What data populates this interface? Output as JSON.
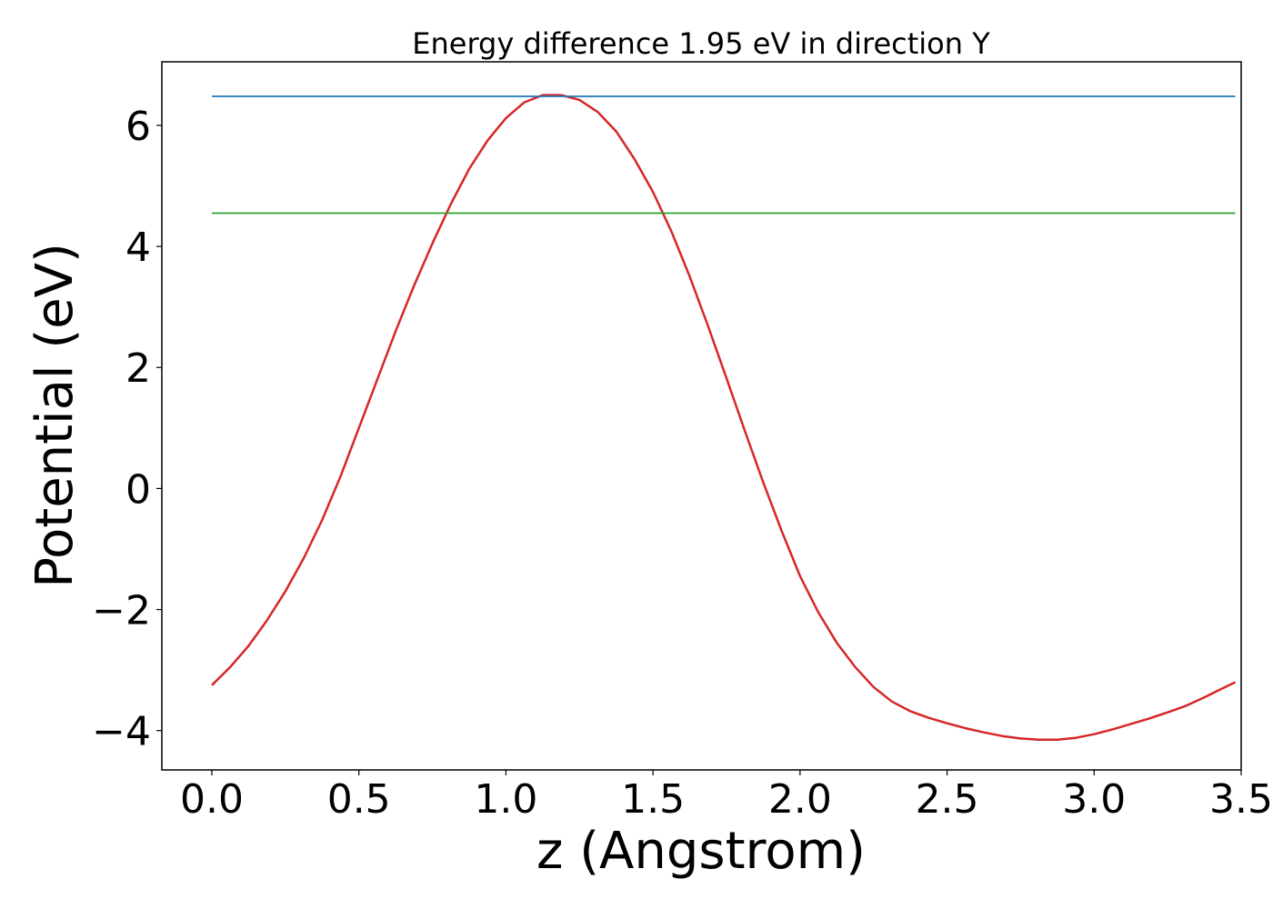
{
  "chart_data": {
    "type": "line",
    "title": "Energy difference 1.95 eV in direction Y",
    "xlabel": "z (Angstrom)",
    "ylabel": "Potential (eV)",
    "xlim": [
      -0.17,
      3.5
    ],
    "ylim": [
      -4.65,
      7.05
    ],
    "xticks": [
      0.0,
      0.5,
      1.0,
      1.5,
      2.0,
      2.5,
      3.0,
      3.5
    ],
    "xtick_labels": [
      "0.0",
      "0.5",
      "1.0",
      "1.5",
      "2.0",
      "2.5",
      "3.0",
      "3.5"
    ],
    "yticks": [
      -4,
      -2,
      0,
      2,
      4,
      6
    ],
    "ytick_labels": [
      "−4",
      "−2",
      "0",
      "2",
      "4",
      "6"
    ],
    "grid": false,
    "series": [
      {
        "color": "#d62728",
        "x": [
          0.0,
          0.0625,
          0.125,
          0.1875,
          0.25,
          0.3125,
          0.375,
          0.4375,
          0.5,
          0.5625,
          0.625,
          0.6875,
          0.75,
          0.8125,
          0.875,
          0.9375,
          1.0,
          1.0625,
          1.125,
          1.1875,
          1.25,
          1.3125,
          1.375,
          1.4375,
          1.5,
          1.5625,
          1.625,
          1.6875,
          1.75,
          1.8125,
          1.875,
          1.9375,
          2.0,
          2.0625,
          2.125,
          2.1875,
          2.25,
          2.3125,
          2.375,
          2.4375,
          2.5,
          2.5625,
          2.625,
          2.6875,
          2.75,
          2.8125,
          2.875,
          2.9375,
          3.0,
          3.0625,
          3.125,
          3.1875,
          3.25,
          3.3125,
          3.375,
          3.4375,
          3.48
        ],
        "y": [
          -3.25,
          -2.95,
          -2.6,
          -2.18,
          -1.7,
          -1.15,
          -0.52,
          0.2,
          1.0,
          1.8,
          2.6,
          3.35,
          4.05,
          4.7,
          5.28,
          5.75,
          6.12,
          6.38,
          6.5,
          6.5,
          6.42,
          6.22,
          5.9,
          5.44,
          4.9,
          4.25,
          3.5,
          2.68,
          1.82,
          0.95,
          0.1,
          -0.7,
          -1.45,
          -2.05,
          -2.55,
          -2.95,
          -3.28,
          -3.52,
          -3.68,
          -3.79,
          -3.88,
          -3.96,
          -4.03,
          -4.09,
          -4.13,
          -4.15,
          -4.15,
          -4.12,
          -4.06,
          -3.98,
          -3.89,
          -3.8,
          -3.7,
          -3.59,
          -3.45,
          -3.3,
          -3.2
        ]
      },
      {
        "color": "#1f77b4",
        "x": [
          0.0,
          3.48
        ],
        "y": [
          6.48,
          6.48
        ]
      },
      {
        "color": "#2ca02c",
        "x": [
          0.0,
          3.48
        ],
        "y": [
          4.55,
          4.55
        ]
      }
    ]
  }
}
